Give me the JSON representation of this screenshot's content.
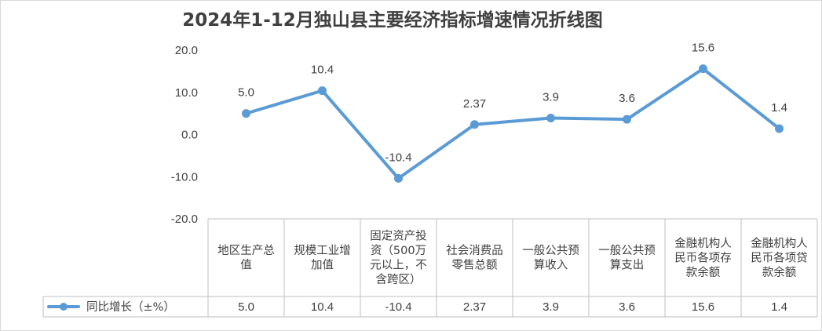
{
  "chart_data": {
    "type": "line",
    "title": "2024年1-12月独山县主要经济指标增速情况折线图",
    "categories": [
      "地区生产总值",
      "规模工业增加值",
      "固定资产投资（500万元以上，不含跨区）",
      "社会消费品零售总额",
      "一般公共预算收入",
      "一般公共预算支出",
      "金融机构人民币各项存款余额",
      "金融机构人民币各项贷款余额"
    ],
    "category_lines": [
      [
        "地区生产总",
        "值"
      ],
      [
        "规模工业增",
        "加值"
      ],
      [
        "固定资产投",
        "资（500万",
        "元以上，不",
        "含跨区）"
      ],
      [
        "社会消费品",
        "零售总额"
      ],
      [
        "一般公共预",
        "算收入"
      ],
      [
        "一般公共预",
        "算支出"
      ],
      [
        "金融机构人",
        "民币各项存",
        "款余额"
      ],
      [
        "金融机构人",
        "民币各项贷",
        "款余额"
      ]
    ],
    "series": [
      {
        "name": "同比增长（±%）",
        "values": [
          5.0,
          10.4,
          -10.4,
          2.37,
          3.9,
          3.6,
          15.6,
          1.4
        ],
        "labels": [
          "5.0",
          "10.4",
          "-10.4",
          "2.37",
          "3.9",
          "3.6",
          "15.6",
          "1.4"
        ],
        "color": "#5b9bd5"
      }
    ],
    "ylim": [
      -20,
      20
    ],
    "yticks": [
      "20.0",
      "10.0",
      "0.0",
      "-10.0",
      "-20.0"
    ],
    "ytick_values": [
      20,
      10,
      0,
      -10,
      -20
    ],
    "grid": false,
    "legend": "data-table"
  }
}
